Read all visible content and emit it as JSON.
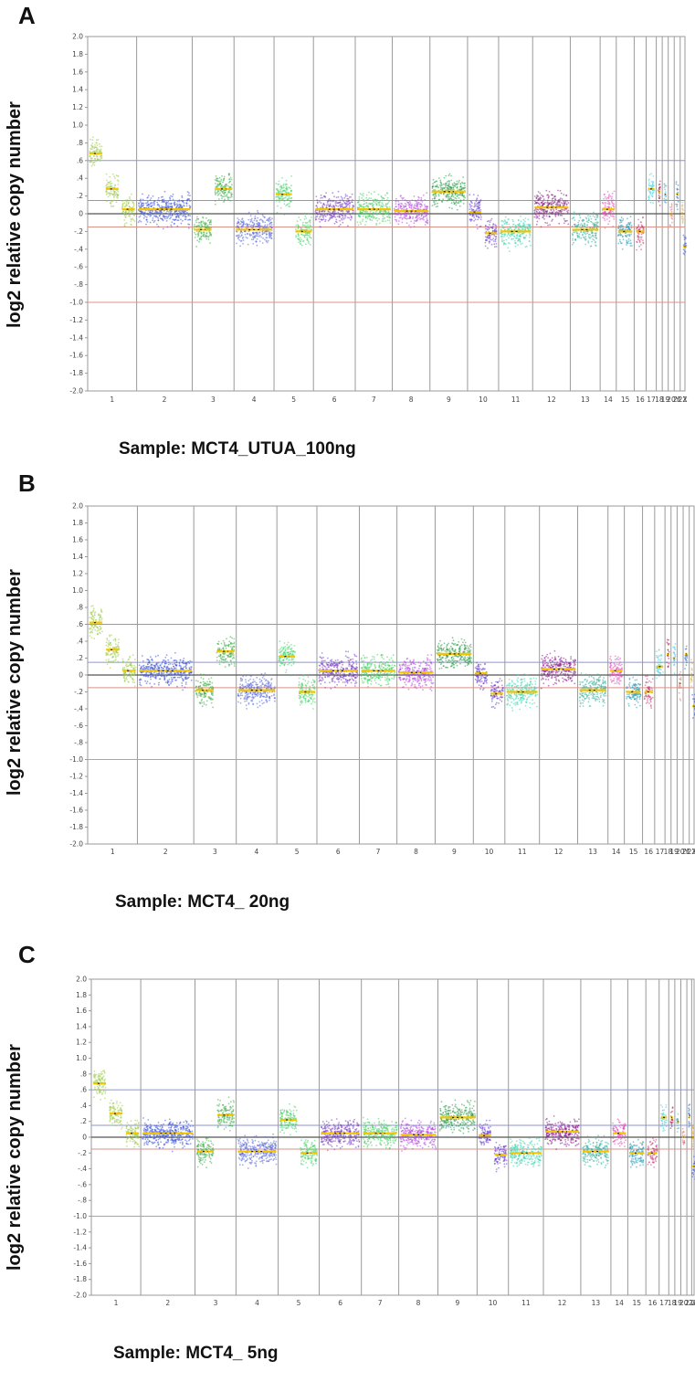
{
  "chart_data": [
    {
      "type": "scatter",
      "panel": "A",
      "sample_label": "Sample: MCT4_UTUA_100ng",
      "ylabel": "log2 relative copy number",
      "ylim": [
        -2.0,
        2.0
      ],
      "yticks": [
        "2.0",
        "1.8",
        "1.6",
        "1.4",
        "1.2",
        "1.0",
        ".8",
        ".6",
        ".4",
        ".2",
        "0",
        "-.2",
        "-.4",
        "-.6",
        "-.8",
        "-1.0",
        "-1.2",
        "-1.4",
        "-1.6",
        "-1.8",
        "-2.0"
      ],
      "reference_lines": [
        0.6,
        0.15,
        0.0,
        -0.15,
        -1.0
      ],
      "categories": [
        "1",
        "2",
        "3",
        "4",
        "5",
        "6",
        "7",
        "8",
        "9",
        "10",
        "11",
        "12",
        "13",
        "14",
        "15",
        "16",
        "17",
        "18",
        "19",
        "20",
        "21",
        "22",
        "X",
        "Y"
      ],
      "segments": [
        {
          "chr": "1",
          "values": [
            0.68,
            0.28,
            0.05
          ]
        },
        {
          "chr": "2",
          "values": [
            0.05
          ]
        },
        {
          "chr": "3",
          "values": [
            -0.18,
            0.28
          ]
        },
        {
          "chr": "4",
          "values": [
            -0.18
          ]
        },
        {
          "chr": "5",
          "values": [
            0.22,
            -0.2
          ]
        },
        {
          "chr": "6",
          "values": [
            0.05
          ]
        },
        {
          "chr": "7",
          "values": [
            0.05
          ]
        },
        {
          "chr": "8",
          "values": [
            0.03
          ]
        },
        {
          "chr": "9",
          "values": [
            0.25
          ]
        },
        {
          "chr": "10",
          "values": [
            0.02,
            -0.22
          ]
        },
        {
          "chr": "11",
          "values": [
            -0.2
          ]
        },
        {
          "chr": "12",
          "values": [
            0.07
          ]
        },
        {
          "chr": "13",
          "values": [
            -0.18
          ]
        },
        {
          "chr": "14",
          "values": [
            0.05
          ]
        },
        {
          "chr": "15",
          "values": [
            -0.2
          ]
        },
        {
          "chr": "16",
          "values": [
            -0.2
          ]
        },
        {
          "chr": "17",
          "values": [
            0.28
          ]
        },
        {
          "chr": "18",
          "values": [
            0.25
          ]
        },
        {
          "chr": "19",
          "values": [
            0.22
          ]
        },
        {
          "chr": "20",
          "values": [
            0.0
          ]
        },
        {
          "chr": "21",
          "values": [
            0.22
          ]
        },
        {
          "chr": "22",
          "values": [
            0.0
          ]
        },
        {
          "chr": "X",
          "values": [
            -0.37
          ]
        },
        {
          "chr": "Y",
          "values": []
        }
      ]
    },
    {
      "type": "scatter",
      "panel": "B",
      "sample_label": "Sample: MCT4_ 20ng",
      "ylabel": "log2 relative copy number",
      "ylim": [
        -2.0,
        2.0
      ],
      "yticks": [
        "2.0",
        "1.8",
        "1.6",
        "1.4",
        "1.2",
        "1.0",
        ".8",
        ".6",
        ".4",
        ".2",
        "0",
        "-.2",
        "-.4",
        "-.6",
        "-.8",
        "-1.0",
        "-1.2",
        "-1.4",
        "-1.6",
        "-1.8",
        "-2.0"
      ],
      "reference_lines": [
        0.6,
        0.15,
        0.0,
        -0.15,
        -1.0
      ],
      "categories": [
        "1",
        "2",
        "3",
        "4",
        "5",
        "6",
        "7",
        "8",
        "9",
        "10",
        "11",
        "12",
        "13",
        "14",
        "15",
        "16",
        "17",
        "18",
        "19",
        "20",
        "21",
        "22",
        "X",
        "Y"
      ],
      "segments": [
        {
          "chr": "1",
          "values": [
            0.62,
            0.3,
            0.05
          ]
        },
        {
          "chr": "2",
          "values": [
            0.05
          ]
        },
        {
          "chr": "3",
          "values": [
            -0.18,
            0.28
          ]
        },
        {
          "chr": "4",
          "values": [
            -0.18
          ]
        },
        {
          "chr": "5",
          "values": [
            0.22,
            -0.2
          ]
        },
        {
          "chr": "6",
          "values": [
            0.05
          ]
        },
        {
          "chr": "7",
          "values": [
            0.05
          ]
        },
        {
          "chr": "8",
          "values": [
            0.03
          ]
        },
        {
          "chr": "9",
          "values": [
            0.25
          ]
        },
        {
          "chr": "10",
          "values": [
            0.02,
            -0.22
          ]
        },
        {
          "chr": "11",
          "values": [
            -0.2
          ]
        },
        {
          "chr": "12",
          "values": [
            0.07
          ]
        },
        {
          "chr": "13",
          "values": [
            -0.18
          ]
        },
        {
          "chr": "14",
          "values": [
            0.05
          ]
        },
        {
          "chr": "15",
          "values": [
            -0.2
          ]
        },
        {
          "chr": "16",
          "values": [
            -0.2
          ]
        },
        {
          "chr": "17",
          "values": [
            0.1
          ]
        },
        {
          "chr": "18",
          "values": [
            0.25
          ]
        },
        {
          "chr": "19",
          "values": [
            0.2
          ]
        },
        {
          "chr": "20",
          "values": [
            -0.1
          ]
        },
        {
          "chr": "21",
          "values": [
            0.25
          ]
        },
        {
          "chr": "22",
          "values": [
            0.0
          ]
        },
        {
          "chr": "X",
          "values": [
            -0.37
          ]
        },
        {
          "chr": "Y",
          "values": []
        }
      ]
    },
    {
      "type": "scatter",
      "panel": "C",
      "sample_label": "Sample: MCT4_ 5ng",
      "ylabel": "log2 relative copy number",
      "ylim": [
        -2.0,
        2.0
      ],
      "yticks": [
        "2.0",
        "1.8",
        "1.6",
        "1.4",
        "1.2",
        "1.0",
        ".8",
        ".6",
        ".4",
        ".2",
        "0",
        "-.2",
        "-.4",
        "-.6",
        "-.8",
        "-1.0",
        "-1.2",
        "-1.4",
        "-1.6",
        "-1.8",
        "-2.0"
      ],
      "reference_lines": [
        0.6,
        0.15,
        0.0,
        -0.15,
        -1.0
      ],
      "categories": [
        "1",
        "2",
        "3",
        "4",
        "5",
        "6",
        "7",
        "8",
        "9",
        "10",
        "11",
        "12",
        "13",
        "14",
        "15",
        "16",
        "17",
        "18",
        "19",
        "20",
        "21",
        "22",
        "X"
      ],
      "segments": [
        {
          "chr": "1",
          "values": [
            0.68,
            0.3,
            0.05
          ]
        },
        {
          "chr": "2",
          "values": [
            0.05
          ]
        },
        {
          "chr": "3",
          "values": [
            -0.18,
            0.28
          ]
        },
        {
          "chr": "4",
          "values": [
            -0.18
          ]
        },
        {
          "chr": "5",
          "values": [
            0.22,
            -0.2
          ]
        },
        {
          "chr": "6",
          "values": [
            0.05
          ]
        },
        {
          "chr": "7",
          "values": [
            0.05
          ]
        },
        {
          "chr": "8",
          "values": [
            0.03
          ]
        },
        {
          "chr": "9",
          "values": [
            0.25
          ]
        },
        {
          "chr": "10",
          "values": [
            0.02,
            -0.22
          ]
        },
        {
          "chr": "11",
          "values": [
            -0.2
          ]
        },
        {
          "chr": "12",
          "values": [
            0.07
          ]
        },
        {
          "chr": "13",
          "values": [
            -0.18
          ]
        },
        {
          "chr": "14",
          "values": [
            0.05
          ]
        },
        {
          "chr": "15",
          "values": [
            -0.2
          ]
        },
        {
          "chr": "16",
          "values": [
            -0.2
          ]
        },
        {
          "chr": "17",
          "values": [
            0.25
          ]
        },
        {
          "chr": "18",
          "values": [
            0.25
          ]
        },
        {
          "chr": "19",
          "values": [
            0.2
          ]
        },
        {
          "chr": "20",
          "values": [
            0.0
          ]
        },
        {
          "chr": "21",
          "values": [
            0.25
          ]
        },
        {
          "chr": "22",
          "values": [
            0.0
          ]
        },
        {
          "chr": "X",
          "values": [
            -0.37
          ]
        }
      ]
    }
  ],
  "colors": {
    "axis": "#9a9a9a",
    "zero_line": "#555555",
    "gain_line": "#8f93d6",
    "loss_line": "#d9938a",
    "segment": "#f5c400"
  }
}
